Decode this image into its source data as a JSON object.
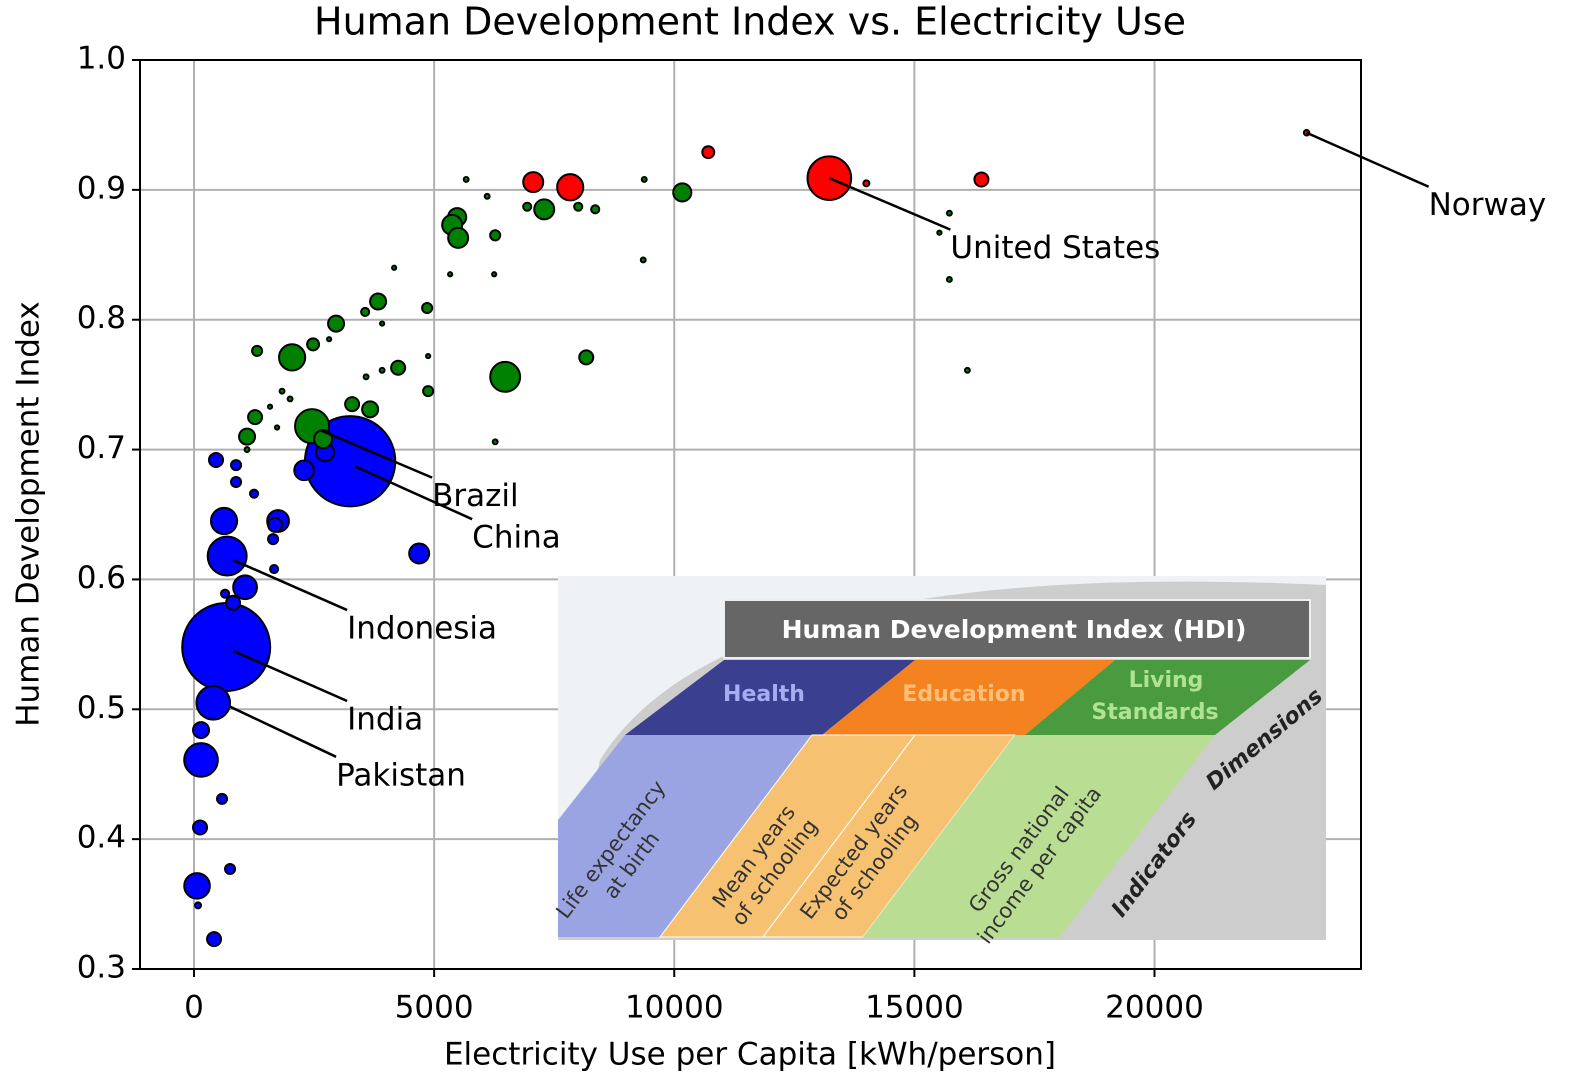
{
  "chart_data": {
    "type": "scatter",
    "title": "Human Development Index vs. Electricity Use",
    "xlabel": "Electricity Use per Capita [kWh/person]",
    "ylabel": "Human Development Index",
    "xlim": [
      -1125,
      24300
    ],
    "ylim": [
      0.3,
      1.0
    ],
    "xticks": [
      0,
      5000,
      10000,
      15000,
      20000
    ],
    "yticks": [
      0.3,
      0.4,
      0.5,
      0.6,
      0.7,
      0.8,
      0.9,
      {
        "value": 1,
        "label": "1.0"
      }
    ],
    "grid": true,
    "series": [
      {
        "color": "#0000ff",
        "x": [
          3250,
          670,
          400,
          690,
          146,
          63,
          625,
          1750,
          1063,
          2292,
          2729,
          4688,
          458,
          813,
          146,
          125,
          583,
          750,
          417,
          83,
          875,
          1250,
          1646,
          1667,
          1688,
          875,
          646
        ],
        "values": [
          0.691,
          0.548,
          0.505,
          0.618,
          0.461,
          0.364,
          0.645,
          0.645,
          0.594,
          0.684,
          0.698,
          0.62,
          0.692,
          0.582,
          0.484,
          0.409,
          0.431,
          0.377,
          0.323,
          0.349,
          0.675,
          0.666,
          0.631,
          0.608,
          0.642,
          0.688,
          0.589
        ],
        "sizes": [
          1370,
          1300,
          190,
          255,
          190,
          110,
          115,
          80,
          95,
          65,
          55,
          67,
          33,
          33,
          43,
          33,
          17,
          17,
          33,
          6,
          17,
          11,
          17,
          11,
          33,
          17,
          11
        ]
      },
      {
        "color": "#008000",
        "x": [
          2458,
          2688,
          2042,
          6479,
          5479,
          5375,
          5500,
          7292,
          10167,
          8167,
          3833,
          2958,
          1104,
          1271,
          3292,
          3667,
          4250,
          4875,
          4854,
          2479,
          1313,
          6271,
          3563,
          8000,
          8354,
          6938,
          5667,
          6104,
          9375,
          9354,
          15729,
          15729,
          16104,
          15521,
          4167,
          5333,
          6271,
          6250,
          4875,
          3917,
          3583,
          1833,
          1729,
          2000,
          1583,
          2813,
          3917,
          1104
        ],
        "values": [
          0.718,
          0.708,
          0.771,
          0.756,
          0.879,
          0.873,
          0.863,
          0.885,
          0.898,
          0.771,
          0.814,
          0.797,
          0.71,
          0.725,
          0.735,
          0.731,
          0.763,
          0.745,
          0.809,
          0.781,
          0.776,
          0.865,
          0.806,
          0.887,
          0.885,
          0.887,
          0.908,
          0.895,
          0.908,
          0.846,
          0.882,
          0.831,
          0.761,
          0.867,
          0.84,
          0.835,
          0.706,
          0.835,
          0.772,
          0.761,
          0.756,
          0.745,
          0.717,
          0.739,
          0.733,
          0.785,
          0.797,
          0.7
        ],
        "sizes": [
          195,
          55,
          115,
          150,
          55,
          67,
          67,
          67,
          55,
          33,
          43,
          43,
          43,
          33,
          33,
          43,
          33,
          17,
          17,
          24,
          17,
          17,
          11,
          11,
          11,
          11,
          4,
          4,
          4,
          4,
          4,
          4,
          4,
          3,
          3,
          3,
          4,
          3,
          3,
          4,
          4,
          4,
          3,
          4,
          3,
          3,
          3,
          4
        ]
      },
      {
        "color": "#ff0000",
        "x": [
          13229,
          7833,
          7063,
          16396,
          10708,
          14000,
          23167
        ],
        "values": [
          0.909,
          0.902,
          0.906,
          0.908,
          0.929,
          0.905,
          0.944
        ],
        "sizes": [
          320,
          115,
          67,
          33,
          24,
          6,
          5
        ]
      }
    ],
    "annotations": [
      {
        "text": "Norway",
        "xy": [
          23167,
          0.944
        ],
        "xytext": [
          25708,
          0.887
        ]
      },
      {
        "text": "United States",
        "xy": [
          13229,
          0.909
        ],
        "xytext": [
          15750,
          0.854
        ]
      },
      {
        "text": "Brazil",
        "xy": [
          2625,
          0.715
        ],
        "xytext": [
          4958,
          0.663
        ]
      },
      {
        "text": "China",
        "xy": [
          3354,
          0.687
        ],
        "xytext": [
          5792,
          0.631
        ]
      },
      {
        "text": "Indonesia",
        "xy": [
          813,
          0.615
        ],
        "xytext": [
          3188,
          0.561
        ]
      },
      {
        "text": "India",
        "xy": [
          813,
          0.545
        ],
        "xytext": [
          3188,
          0.491
        ]
      },
      {
        "text": "Pakistan",
        "xy": [
          750,
          0.502
        ],
        "xytext": [
          2958,
          0.448
        ]
      }
    ],
    "inset": {
      "title": "Human Development Index (HDI)",
      "dimensions": [
        [
          "Health"
        ],
        [
          "Education"
        ],
        [
          "Living",
          "Standards"
        ]
      ],
      "indicators": [
        [
          "Life expectancy",
          "at birth"
        ],
        [
          "Mean years",
          "of schooling"
        ],
        [
          "Expected years",
          "of schooling"
        ],
        [
          "Gross national",
          "income per capita"
        ]
      ],
      "dimensions_label": "Dimensions",
      "indicators_label": "Indicators"
    }
  }
}
